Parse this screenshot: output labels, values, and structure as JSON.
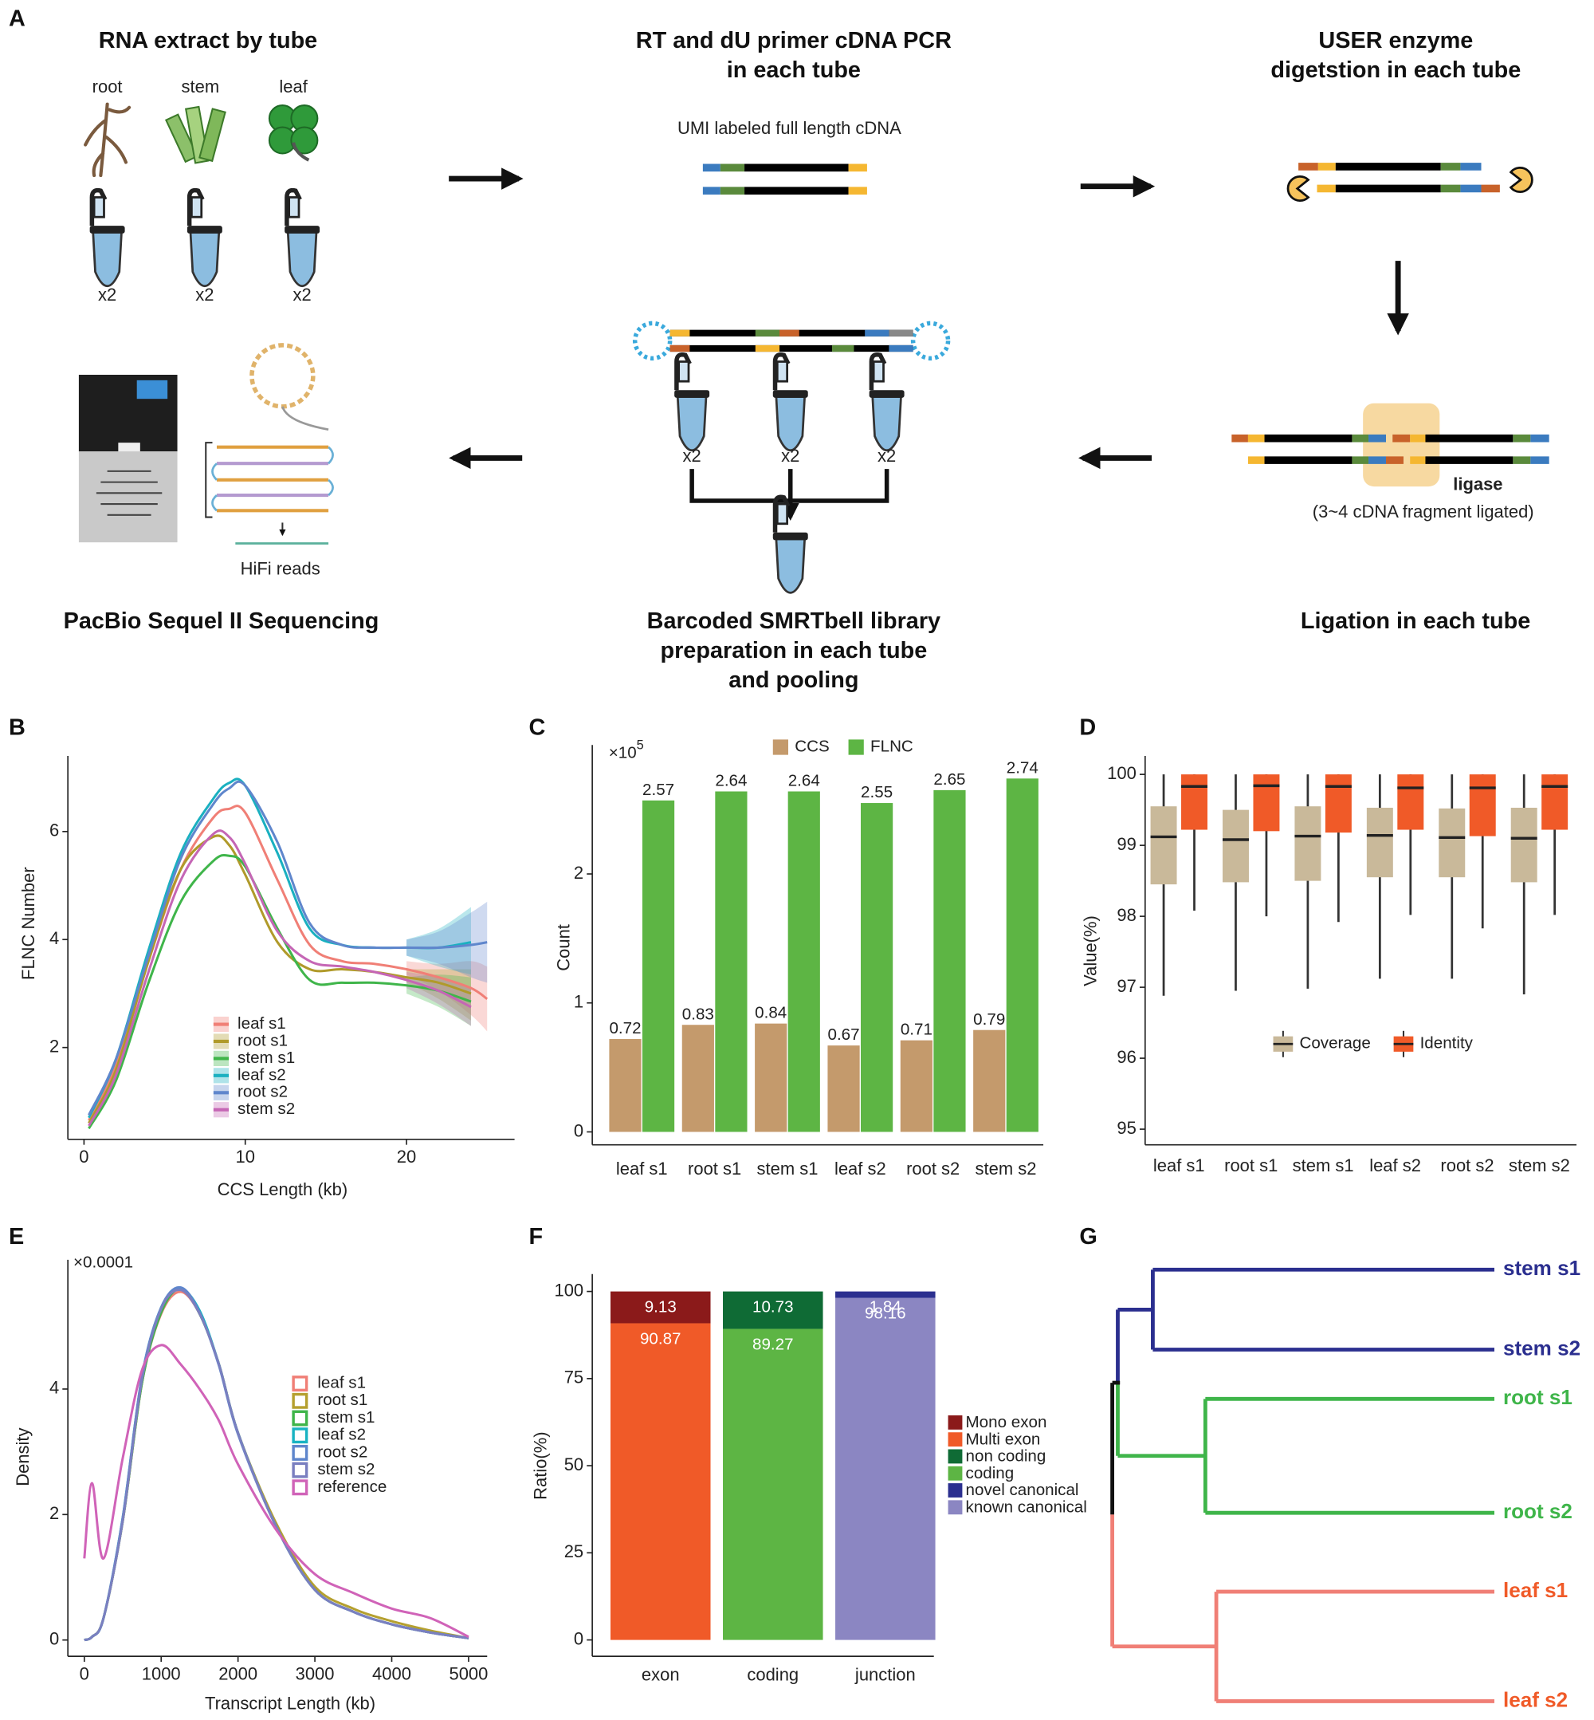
{
  "figure": {
    "panel_labels": [
      "A",
      "B",
      "C",
      "D",
      "E",
      "F",
      "G"
    ],
    "workflow": {
      "rna_extract": {
        "title": "RNA extract by tube",
        "tissues": [
          "root",
          "stem",
          "leaf"
        ],
        "replicates": "x2"
      },
      "rt_pcr": {
        "title": [
          "RT and dU primer cDNA PCR",
          "in each tube"
        ],
        "caption": "UMI labeled full length cDNA"
      },
      "user_digestion": {
        "title": [
          "USER enzyme",
          "digetstion in each tube"
        ]
      },
      "ligation": {
        "enzyme": "ligase",
        "caption": "(3~4 cDNA fragment ligated)",
        "title": "Ligation in each tube"
      },
      "library": {
        "title": [
          "Barcoded SMRTbell  library",
          "preparation in each tube",
          "and pooling"
        ]
      },
      "sequencing": {
        "caption": "HiFi reads",
        "title": "PacBio Sequel II Sequencing"
      }
    }
  },
  "chart_data": [
    {
      "type": "line",
      "x_label": "CCS Length (kb)",
      "y_label": "FLNC Number",
      "xlim": [
        -1,
        26.7
      ],
      "ylim": [
        0.3,
        7.4
      ],
      "xticks": [
        0,
        10,
        20
      ],
      "yticks": [
        2,
        4,
        6
      ],
      "x": [
        0.3,
        2,
        4,
        6,
        8,
        9,
        10,
        12,
        14,
        16,
        18,
        20,
        22,
        24,
        25
      ],
      "series": [
        {
          "name": "leaf s1",
          "color": "#f07f76",
          "values": [
            0.65,
            1.7,
            3.6,
            5.3,
            6.25,
            6.42,
            6.35,
            5.1,
            3.9,
            3.6,
            3.55,
            3.45,
            3.3,
            3.1,
            2.9
          ],
          "ci_lower": [
            null,
            null,
            null,
            null,
            null,
            null,
            null,
            null,
            null,
            null,
            null,
            3.35,
            3.05,
            2.6,
            2.3
          ],
          "ci_upper": [
            null,
            null,
            null,
            null,
            null,
            null,
            null,
            null,
            null,
            null,
            null,
            3.6,
            3.55,
            3.6,
            3.5
          ]
        },
        {
          "name": "root s1",
          "color": "#b09a2a",
          "values": [
            0.6,
            1.6,
            3.6,
            5.3,
            5.9,
            5.75,
            5.2,
            3.95,
            3.45,
            3.45,
            3.4,
            3.3,
            3.2,
            3.0,
            null
          ],
          "ci_lower": [
            null,
            null,
            null,
            null,
            null,
            null,
            null,
            null,
            null,
            null,
            null,
            3.2,
            2.9,
            2.5,
            null
          ],
          "ci_upper": [
            null,
            null,
            null,
            null,
            null,
            null,
            null,
            null,
            null,
            null,
            null,
            3.45,
            3.45,
            3.45,
            null
          ]
        },
        {
          "name": "stem s1",
          "color": "#3fb54a",
          "values": [
            0.5,
            1.4,
            3.2,
            4.7,
            5.45,
            5.55,
            5.35,
            4.2,
            3.25,
            3.2,
            3.2,
            3.15,
            3.05,
            2.85,
            null
          ],
          "ci_lower": [
            null,
            null,
            null,
            null,
            null,
            null,
            null,
            null,
            null,
            null,
            null,
            3.0,
            2.75,
            2.4,
            null
          ],
          "ci_upper": [
            null,
            null,
            null,
            null,
            null,
            null,
            null,
            null,
            null,
            null,
            null,
            3.3,
            3.35,
            3.3,
            null
          ]
        },
        {
          "name": "leaf s2",
          "color": "#1ab0c0",
          "values": [
            0.7,
            1.8,
            3.8,
            5.6,
            6.6,
            6.9,
            6.85,
            5.6,
            4.2,
            3.9,
            3.85,
            3.85,
            3.85,
            3.95,
            null
          ],
          "ci_lower": [
            null,
            null,
            null,
            null,
            null,
            null,
            null,
            null,
            null,
            null,
            null,
            3.7,
            3.5,
            3.35,
            null
          ],
          "ci_upper": [
            null,
            null,
            null,
            null,
            null,
            null,
            null,
            null,
            null,
            null,
            null,
            4.0,
            4.2,
            4.6,
            null
          ]
        },
        {
          "name": "root s2",
          "color": "#5f86cc",
          "values": [
            0.75,
            1.8,
            3.7,
            5.5,
            6.5,
            6.8,
            6.85,
            5.8,
            4.3,
            3.9,
            3.85,
            3.85,
            3.85,
            3.9,
            3.95
          ],
          "ci_lower": [
            null,
            null,
            null,
            null,
            null,
            null,
            null,
            null,
            null,
            null,
            null,
            3.7,
            3.55,
            3.3,
            3.2
          ],
          "ci_upper": [
            null,
            null,
            null,
            null,
            null,
            null,
            null,
            null,
            null,
            null,
            null,
            4.0,
            4.15,
            4.5,
            4.7
          ]
        },
        {
          "name": "stem s2",
          "color": "#c566b5",
          "values": [
            0.55,
            1.5,
            3.4,
            5.1,
            5.95,
            5.9,
            5.4,
            4.15,
            3.6,
            3.5,
            3.4,
            3.25,
            3.05,
            2.75,
            null
          ],
          "ci_lower": [
            null,
            null,
            null,
            null,
            null,
            null,
            null,
            null,
            null,
            null,
            null,
            3.1,
            2.8,
            2.4,
            null
          ],
          "ci_upper": [
            null,
            null,
            null,
            null,
            null,
            null,
            null,
            null,
            null,
            null,
            null,
            3.4,
            3.3,
            3.1,
            null
          ]
        }
      ]
    },
    {
      "type": "bar",
      "y_label": "Count",
      "y_multiplier": {
        "base": "×10",
        "exponent": "5"
      },
      "ylim": [
        -0.1,
        3.0
      ],
      "yticks": [
        0,
        1,
        2
      ],
      "categories": [
        "leaf s1",
        "root s1",
        "stem s1",
        "leaf s2",
        "root s2",
        "stem s2"
      ],
      "series": [
        {
          "name": "CCS",
          "color": "#c49a6c",
          "values": [
            0.72,
            0.83,
            0.84,
            0.67,
            0.71,
            0.79
          ]
        },
        {
          "name": "FLNC",
          "color": "#5db544",
          "values": [
            2.57,
            2.64,
            2.64,
            2.55,
            2.65,
            2.74
          ]
        }
      ]
    },
    {
      "type": "box",
      "y_label": "Value(%)",
      "ylim": [
        94.78,
        100.26
      ],
      "yticks": [
        95,
        96,
        97,
        98,
        99,
        100
      ],
      "categories": [
        "leaf s1",
        "root s1",
        "stem s1",
        "leaf s2",
        "root s2",
        "stem s2"
      ],
      "series": [
        {
          "name": "Coverage",
          "color": "#c9b99a",
          "min": [
            96.88,
            96.95,
            96.98,
            97.12,
            97.12,
            96.9
          ],
          "q1": [
            98.45,
            98.48,
            98.5,
            98.55,
            98.55,
            98.48
          ],
          "median": [
            99.12,
            99.08,
            99.13,
            99.14,
            99.11,
            99.1
          ],
          "q3": [
            99.55,
            99.5,
            99.55,
            99.53,
            99.52,
            99.53
          ],
          "max": [
            100,
            100,
            100,
            100,
            100,
            100
          ]
        },
        {
          "name": "Identity",
          "color": "#f05a28",
          "min": [
            98.08,
            98.0,
            97.92,
            98.02,
            97.83,
            98.02
          ],
          "q1": [
            99.22,
            99.2,
            99.18,
            99.22,
            99.13,
            99.22
          ],
          "median": [
            99.83,
            99.84,
            99.83,
            99.81,
            99.81,
            99.83
          ],
          "q3": [
            100,
            100,
            100,
            100,
            100,
            100
          ],
          "max": [
            100,
            100,
            100,
            100,
            100,
            100
          ]
        }
      ]
    },
    {
      "type": "line",
      "x_label": "Transcript Length (kb)",
      "y_label": "Density",
      "y_multiplier": "×0.0001",
      "xlim": [
        -214,
        5242
      ],
      "ylim": [
        -0.26,
        6.06
      ],
      "xticks": [
        0,
        1000,
        2000,
        3000,
        4000,
        5000
      ],
      "yticks": [
        0,
        2,
        4
      ],
      "x": [
        0,
        100,
        250,
        500,
        750,
        1000,
        1250,
        1500,
        1750,
        2000,
        2500,
        3000,
        3500,
        4000,
        4500,
        5000
      ],
      "series": [
        {
          "name": "leaf s1",
          "color": "#f07f76",
          "values": [
            0,
            0.05,
            0.35,
            1.9,
            4.1,
            5.2,
            5.55,
            5.2,
            4.4,
            3.3,
            1.8,
            0.8,
            0.45,
            0.25,
            0.12,
            0.03
          ]
        },
        {
          "name": "root s1",
          "color": "#b5a02f",
          "values": [
            0,
            0.05,
            0.35,
            1.9,
            4.1,
            5.25,
            5.6,
            5.2,
            4.4,
            3.3,
            1.85,
            0.85,
            0.5,
            0.3,
            0.15,
            0.03
          ]
        },
        {
          "name": "stem s1",
          "color": "#3fb54a",
          "values": [
            0,
            0.05,
            0.35,
            1.9,
            4.1,
            5.22,
            5.6,
            5.2,
            4.4,
            3.3,
            1.8,
            0.8,
            0.45,
            0.25,
            0.12,
            0.03
          ]
        },
        {
          "name": "leaf s2",
          "color": "#19b3c2",
          "values": [
            0,
            0.05,
            0.35,
            1.95,
            4.2,
            5.3,
            5.6,
            5.25,
            4.4,
            3.3,
            1.8,
            0.8,
            0.45,
            0.25,
            0.12,
            0.03
          ]
        },
        {
          "name": "root s2",
          "color": "#5f86cc",
          "values": [
            0,
            0.05,
            0.35,
            1.95,
            4.2,
            5.3,
            5.62,
            5.22,
            4.38,
            3.28,
            1.8,
            0.8,
            0.45,
            0.25,
            0.12,
            0.03
          ]
        },
        {
          "name": "stem s2",
          "color": "#7a7fc0",
          "values": [
            0,
            0.05,
            0.35,
            1.9,
            4.15,
            5.28,
            5.58,
            5.2,
            4.4,
            3.3,
            1.8,
            0.8,
            0.45,
            0.25,
            0.12,
            0.03
          ]
        },
        {
          "name": "reference",
          "color": "#d063b8",
          "values": [
            1.3,
            2.5,
            1.3,
            2.9,
            4.3,
            4.7,
            4.4,
            4.0,
            3.5,
            2.8,
            1.75,
            1.05,
            0.75,
            0.5,
            0.35,
            0.05
          ]
        }
      ]
    },
    {
      "type": "stacked_bar",
      "y_label": "Ratio(%)",
      "ylim": [
        -4.7,
        105
      ],
      "yticks": [
        0,
        25,
        50,
        75,
        100
      ],
      "categories": [
        "exon",
        "coding",
        "junction"
      ],
      "series": [
        {
          "name": "Mono exon",
          "color": "#8b1a1a",
          "values": [
            9.13,
            null,
            null
          ]
        },
        {
          "name": "Multi exon",
          "color": "#f05a28",
          "values": [
            90.87,
            null,
            null
          ]
        },
        {
          "name": "non coding",
          "color": "#0f6b35",
          "values": [
            null,
            10.73,
            null
          ]
        },
        {
          "name": "coding",
          "color": "#5db544",
          "values": [
            null,
            89.27,
            null
          ]
        },
        {
          "name": "novel canonical",
          "color": "#2b2f8f",
          "values": [
            null,
            null,
            1.84
          ]
        },
        {
          "name": "known canonical",
          "color": "#8b86c2",
          "values": [
            null,
            null,
            98.16
          ]
        }
      ]
    },
    {
      "type": "dendrogram",
      "root_color": "#111111",
      "clusters": [
        {
          "color": "#2b2f8f",
          "label_color": "#2b2f8f",
          "leaves": [
            "stem s1",
            "stem s2"
          ]
        },
        {
          "color": "#3fb54a",
          "label_color": "#3fb54a",
          "leaves": [
            "root s1",
            "root s2"
          ]
        },
        {
          "color": "#f07f76",
          "label_color": "#f05a28",
          "leaves": [
            "leaf s1",
            "leaf s2"
          ]
        }
      ]
    }
  ]
}
